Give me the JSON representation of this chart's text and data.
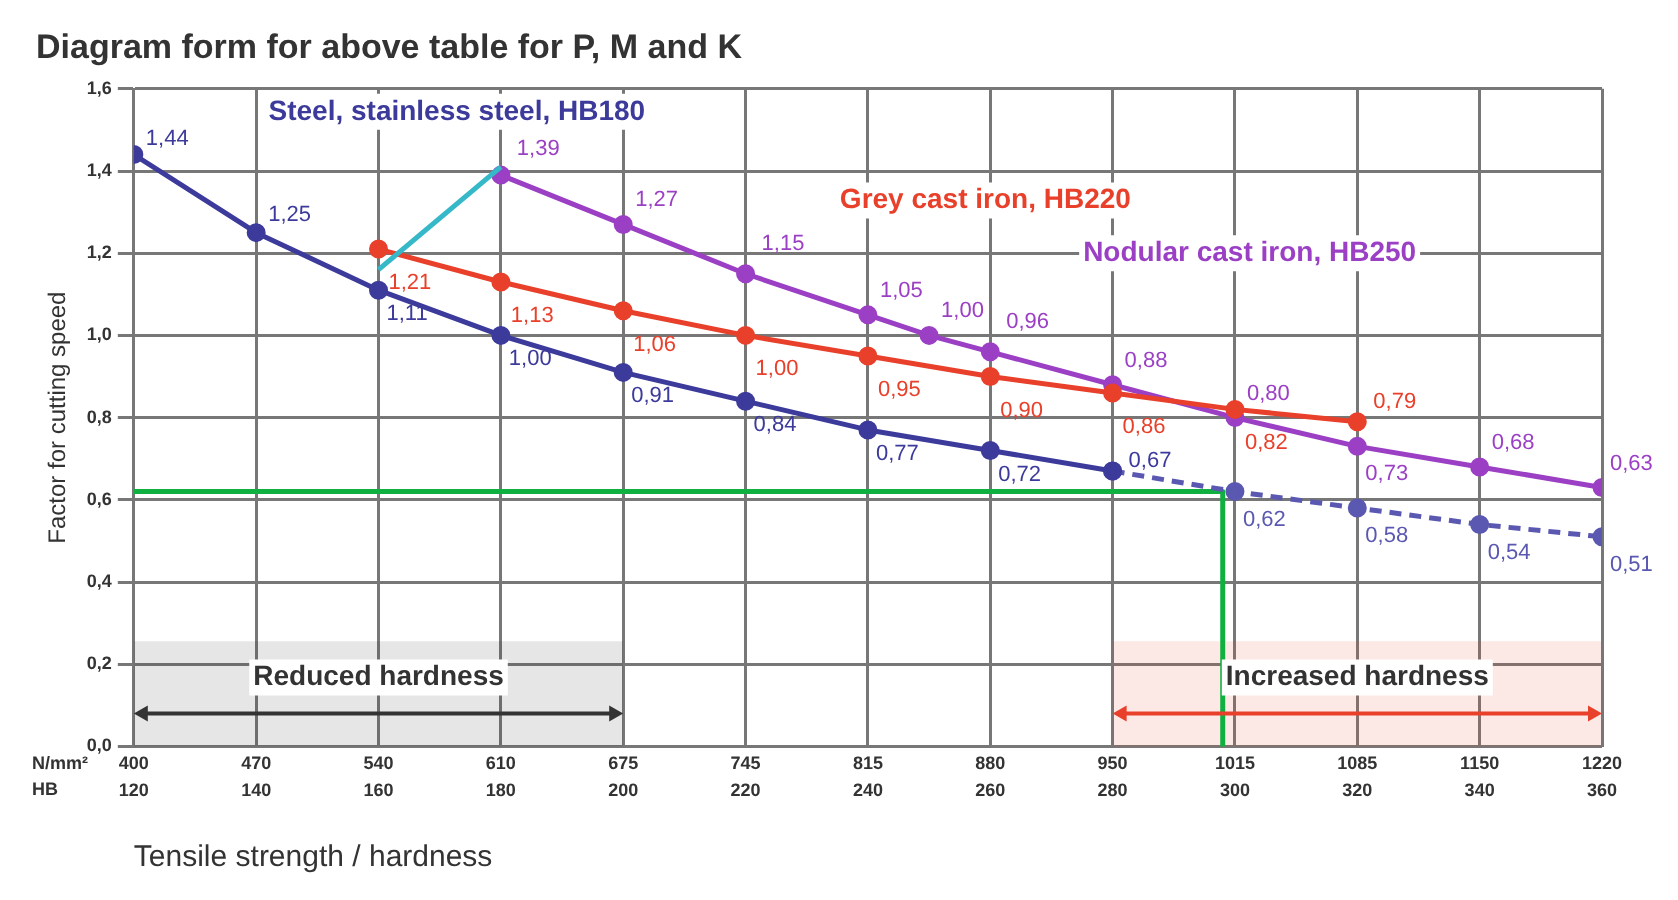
{
  "chart_data": {
    "type": "line",
    "title": "Diagram form for above table for P, M and K",
    "xlabel": "Tensile strength / hardness",
    "ylabel": "Factor for cutting speed",
    "xlim": [
      120,
      360
    ],
    "xticks": [
      120,
      140,
      160,
      180,
      200,
      220,
      240,
      260,
      280,
      300,
      320,
      340,
      360
    ],
    "ylim": [
      0,
      1.6
    ],
    "yticks": [
      {
        "value": 0,
        "label": "0,0"
      },
      {
        "value": 0.2,
        "label": "0,2"
      },
      {
        "value": 0.4,
        "label": "0,4"
      },
      {
        "value": 0.6,
        "label": "0,6"
      },
      {
        "value": 0.8,
        "label": "0,8"
      },
      {
        "value": 1,
        "label": "1,0"
      },
      {
        "value": 1.2,
        "label": "1,2"
      },
      {
        "value": 1.4,
        "label": "1,4"
      },
      {
        "value": 1.6,
        "label": "1,6"
      }
    ],
    "grid": true,
    "legend": false,
    "marker": "circle",
    "series": [
      {
        "name": "Steel, stainless steel, HB180",
        "color": "#3c3a9a",
        "x": [
          120,
          140,
          160,
          180,
          200,
          220,
          240,
          260,
          280
        ],
        "values": [
          1.44,
          1.25,
          1.11,
          1.0,
          0.91,
          0.84,
          0.77,
          0.72,
          0.67
        ],
        "value_labels": [
          "1,44",
          "1,25",
          "1,11",
          "1,00",
          "0,91",
          "0,84",
          "0,77",
          "0,72",
          "0,67"
        ]
      },
      {
        "color": "#5a58b0",
        "line_style": "dashed",
        "x": [
          280,
          300,
          320,
          340,
          360
        ],
        "values": [
          0.67,
          0.62,
          0.58,
          0.54,
          0.51
        ],
        "value_labels": [
          null,
          "0,62",
          "0,58",
          "0,54",
          "0,51"
        ]
      },
      {
        "color": "#35b8c8",
        "x": [
          160,
          180
        ],
        "values": [
          1.16,
          1.41
        ],
        "marker": "none"
      },
      {
        "name": "Grey cast iron, HB220",
        "color": "#e8402a",
        "x": [
          160,
          180,
          200,
          220,
          240,
          260,
          280,
          300,
          320
        ],
        "values": [
          1.21,
          1.13,
          1.06,
          1.0,
          0.95,
          0.9,
          0.86,
          0.82,
          0.79
        ],
        "value_labels": [
          "1,21",
          "1,13",
          "1,06",
          "1,00",
          "0,95",
          "0,90",
          "0,86",
          "0,82",
          "0,79"
        ]
      },
      {
        "name": "Nodular cast iron, HB250",
        "color": "#9b3fc4",
        "x": [
          180,
          200,
          220,
          240,
          250,
          260,
          280,
          300,
          320,
          340,
          360
        ],
        "values": [
          1.39,
          1.27,
          1.15,
          1.05,
          1.0,
          0.96,
          0.88,
          0.8,
          0.73,
          0.68,
          0.63
        ],
        "value_labels": [
          "1,39",
          "1,27",
          "1,15",
          "1,05",
          "1,00",
          "0,96",
          "0,88",
          "0,80",
          "0,73",
          "0,68",
          "0,63"
        ]
      },
      {
        "color": "#10b040",
        "x": [
          120,
          298,
          298
        ],
        "values": [
          0.62,
          0.62,
          0
        ],
        "marker": "none"
      }
    ],
    "bands": [
      {
        "axis": "x",
        "from": 120,
        "to": 200,
        "label": "Reduced hardness",
        "color": "#333333"
      },
      {
        "axis": "x",
        "from": 280,
        "to": 360,
        "label": "Increased hardness",
        "color": "#e8402a"
      }
    ],
    "annotations": [
      "N/mm²",
      "HB",
      "400",
      "470",
      "540",
      "610",
      "675",
      "745",
      "815",
      "880",
      "950",
      "1015",
      "1085",
      "1150",
      "1220"
    ]
  }
}
